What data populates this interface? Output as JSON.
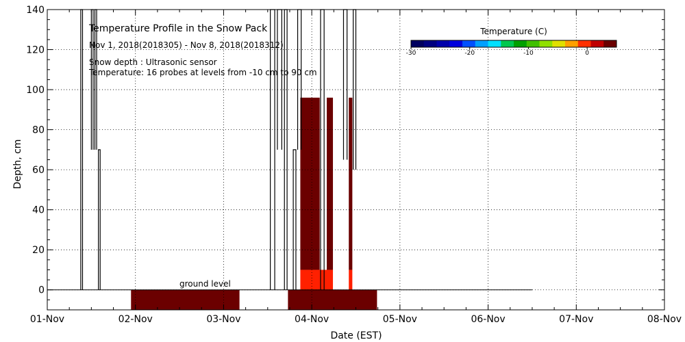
{
  "chart_data": {
    "type": "heatmap",
    "title": "Temperature Profile in the Snow Pack",
    "subtitle": "Nov  1, 2018(2018305) - Nov  8, 2018(2018312)",
    "annotations": [
      "Snow depth : Ultrasonic sensor",
      "Temperature: 16 probes at levels from -10 cm to 90 cm",
      "ground level"
    ],
    "xlabel": "Date (EST)",
    "ylabel": "Depth, cm",
    "x_tick_labels": [
      "01-Nov",
      "02-Nov",
      "03-Nov",
      "04-Nov",
      "05-Nov",
      "06-Nov",
      "07-Nov",
      "08-Nov"
    ],
    "xlim": [
      0,
      7
    ],
    "ylim": [
      -10,
      140
    ],
    "y_ticks": [
      0,
      20,
      40,
      60,
      80,
      100,
      120,
      140
    ],
    "grid": true,
    "colorbar": {
      "title": "Temperature (C)",
      "range": [
        -30,
        5
      ],
      "tick_values": [
        -30,
        -20,
        -10,
        0
      ],
      "tick_labels": [
        "-30",
        "-20",
        "-10",
        "0"
      ],
      "colors": [
        "#00005f",
        "#000080",
        "#0000aa",
        "#0000dd",
        "#0050ff",
        "#00a0ff",
        "#00e0ff",
        "#00c850",
        "#00a000",
        "#40c000",
        "#90e000",
        "#e0e000",
        "#ffa000",
        "#ff3000",
        "#c00000",
        "#6b0000"
      ]
    },
    "ground_line_end_day": 5.5,
    "ground_temperature_blocks": [
      {
        "start_day": 0.95,
        "end_day": 2.18,
        "color": "#6b0000"
      },
      {
        "start_day": 2.73,
        "end_day": 3.74,
        "color": "#6b0000"
      }
    ],
    "snow_temperature_blocks": [
      {
        "start_day": 2.87,
        "end_day": 3.09,
        "bottom_cm": 10,
        "top_cm": 96,
        "color": "#6b0000"
      },
      {
        "start_day": 3.17,
        "end_day": 3.24,
        "bottom_cm": 10,
        "top_cm": 96,
        "color": "#6b0000"
      },
      {
        "start_day": 3.42,
        "end_day": 3.46,
        "bottom_cm": 10,
        "top_cm": 96,
        "color": "#6b0000"
      },
      {
        "start_day": 2.87,
        "end_day": 3.24,
        "bottom_cm": 0,
        "top_cm": 10,
        "color": "#ff2000"
      },
      {
        "start_day": 3.42,
        "end_day": 3.46,
        "bottom_cm": 0,
        "top_cm": 10,
        "color": "#ff2000"
      }
    ],
    "snow_depth_spikes": [
      {
        "start_day": 0.38,
        "end_day": 0.4,
        "top_cm": 140,
        "bottom_cm": 0
      },
      {
        "start_day": 0.5,
        "end_day": 0.52,
        "top_cm": 140,
        "bottom_cm": 70
      },
      {
        "start_day": 0.54,
        "end_day": 0.56,
        "top_cm": 140,
        "bottom_cm": 70
      },
      {
        "start_day": 0.58,
        "end_day": 0.6,
        "top_cm": 70,
        "bottom_cm": 0
      },
      {
        "start_day": 2.53,
        "end_day": 2.58,
        "top_cm": 140,
        "bottom_cm": 0
      },
      {
        "start_day": 2.61,
        "end_day": 2.66,
        "top_cm": 140,
        "bottom_cm": 70
      },
      {
        "start_day": 2.69,
        "end_day": 2.72,
        "top_cm": 140,
        "bottom_cm": 0
      },
      {
        "start_day": 2.79,
        "end_day": 2.82,
        "top_cm": 70,
        "bottom_cm": 0
      },
      {
        "start_day": 2.84,
        "end_day": 2.88,
        "top_cm": 140,
        "bottom_cm": 70
      },
      {
        "start_day": 3.1,
        "end_day": 3.14,
        "top_cm": 140,
        "bottom_cm": 0
      },
      {
        "start_day": 3.36,
        "end_day": 3.4,
        "top_cm": 140,
        "bottom_cm": 65
      },
      {
        "start_day": 3.47,
        "end_day": 3.5,
        "top_cm": 140,
        "bottom_cm": 60
      }
    ]
  }
}
